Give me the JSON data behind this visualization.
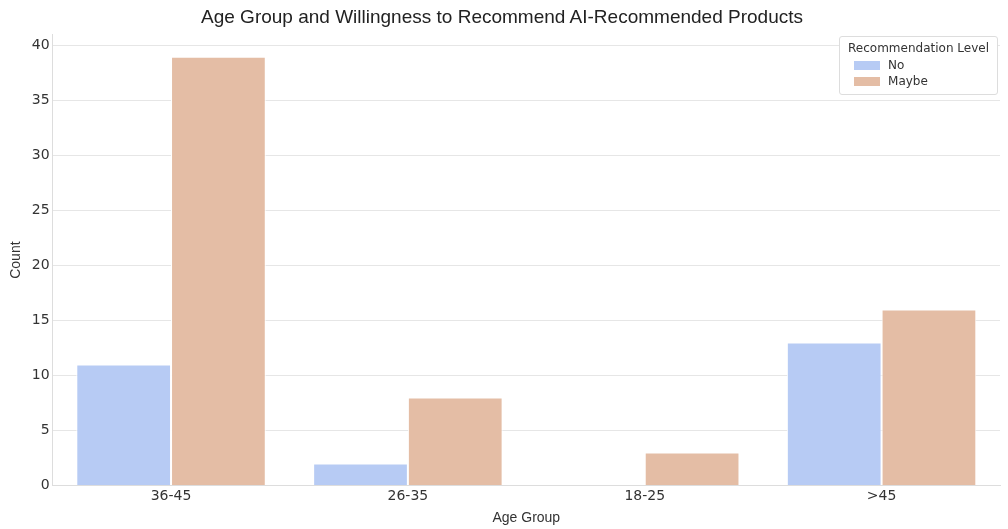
{
  "chart_data": {
    "type": "bar",
    "title": "Age Group and Willingness to Recommend AI-Recommended Products",
    "xlabel": "Age Group",
    "ylabel": "Count",
    "legend_title": "Recommendation Level",
    "categories": [
      "36-45",
      "26-35",
      "18-25",
      ">45"
    ],
    "series": [
      {
        "name": "No",
        "color": "#b7cbf4",
        "values": [
          11,
          2,
          0,
          13
        ]
      },
      {
        "name": "Maybe",
        "color": "#e4bda5",
        "values": [
          39,
          8,
          3,
          16
        ]
      }
    ],
    "ylim": [
      0,
      41
    ],
    "yticks": [
      0,
      5,
      10,
      15,
      20,
      25,
      30,
      35,
      40
    ],
    "grid": "y",
    "legend": "top right"
  }
}
